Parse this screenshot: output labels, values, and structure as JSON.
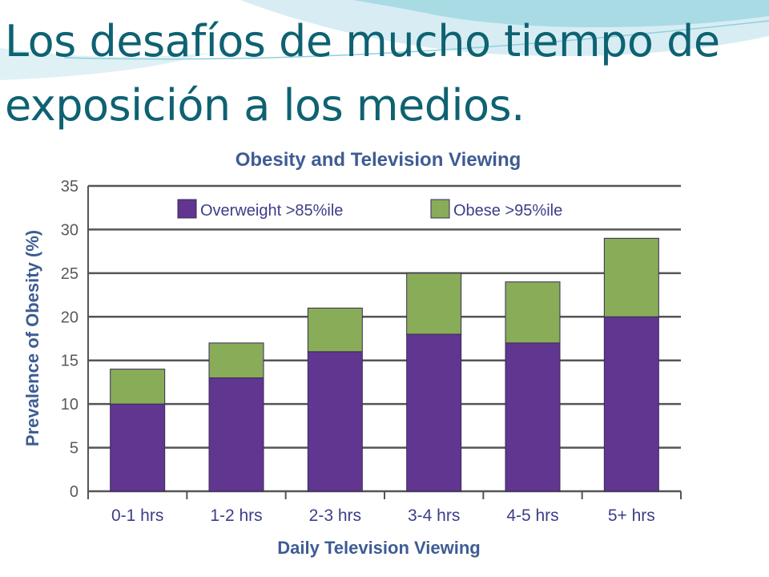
{
  "slide": {
    "title": "Los desafíos de mucho tiempo de exposición a los medios."
  },
  "colors": {
    "title": "#0e6272",
    "overweight": "#603690",
    "obese": "#88ac58",
    "bar_stroke": "#3a2a55",
    "grid": "#555555",
    "chart_text": "#3e5c93",
    "deco_teal": "#4ab8c6",
    "deco_light": "#c9e7ef"
  },
  "chart_data": {
    "type": "bar",
    "stacked": true,
    "title": "Obesity and Television Viewing",
    "xlabel": "Daily Television Viewing",
    "ylabel": "Prevalence of Obesity (%)",
    "categories": [
      "0-1 hrs",
      "1-2 hrs",
      "2-3 hrs",
      "3-4 hrs",
      "4-5 hrs",
      "5+ hrs"
    ],
    "series": [
      {
        "name": "Overweight >85%ile",
        "values": [
          10,
          13,
          16,
          18,
          17,
          20
        ]
      },
      {
        "name": "Obese >95%ile",
        "values": [
          4,
          4,
          5,
          7,
          7,
          9
        ]
      }
    ],
    "ylim": [
      0,
      35
    ],
    "yticks": [
      "0",
      "5",
      "10",
      "15",
      "20",
      "25",
      "30",
      "35"
    ],
    "grid": true,
    "legend_position": "top"
  }
}
